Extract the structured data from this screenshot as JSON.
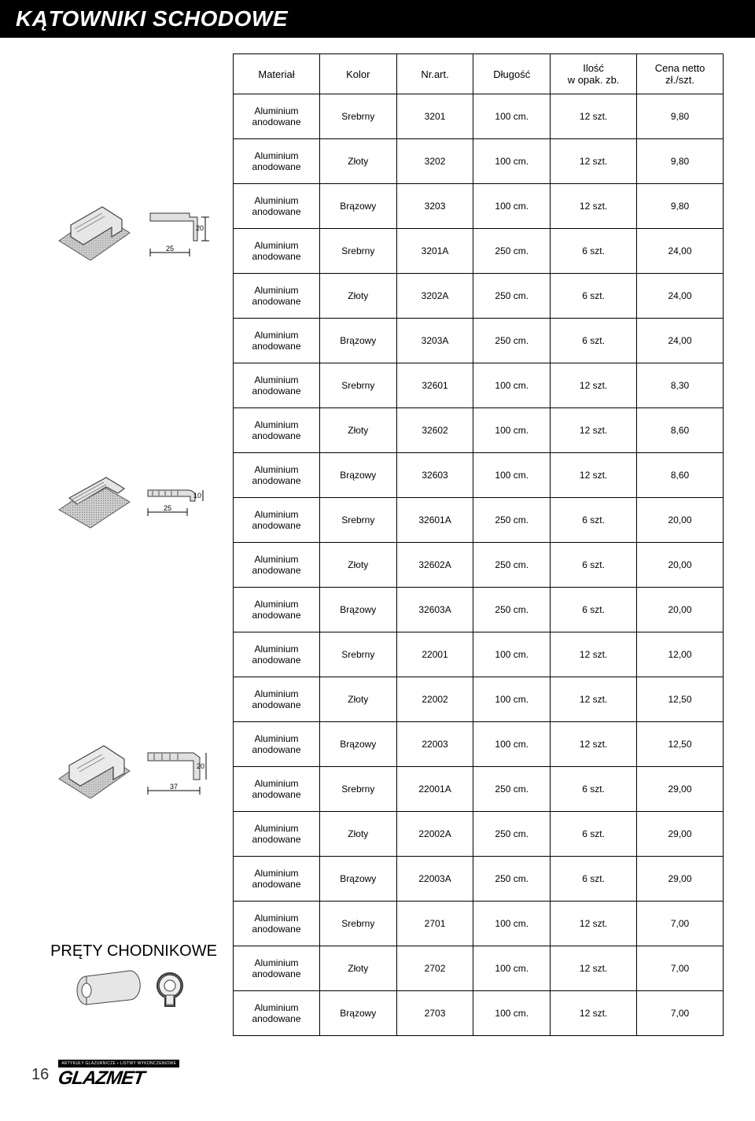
{
  "title": "KĄTOWNIKI SCHODOWE",
  "section2_title": "PRĘTY CHODNIKOWE",
  "page_number": "16",
  "logo_tag": "ARTYKUŁY GLAZURNICZE • LISTWY WYKOŃCZENIOWE",
  "logo_text": "GLAZMET",
  "headers": {
    "material": "Materiał",
    "kolor": "Kolor",
    "nrart": "Nr.art.",
    "dlugosc": "Długość",
    "ilosc": "Ilość\nw opak. zb.",
    "cena": "Cena netto\nzł./szt."
  },
  "material_label": "Aluminium\nanodowane",
  "rows": [
    {
      "k": "Srebrny",
      "a": "3201",
      "d": "100 cm.",
      "i": "12 szt.",
      "c": "9,80"
    },
    {
      "k": "Złoty",
      "a": "3202",
      "d": "100 cm.",
      "i": "12 szt.",
      "c": "9,80"
    },
    {
      "k": "Brązowy",
      "a": "3203",
      "d": "100 cm.",
      "i": "12 szt.",
      "c": "9,80"
    },
    {
      "k": "Srebrny",
      "a": "3201A",
      "d": "250 cm.",
      "i": "6 szt.",
      "c": "24,00"
    },
    {
      "k": "Złoty",
      "a": "3202A",
      "d": "250 cm.",
      "i": "6 szt.",
      "c": "24,00"
    },
    {
      "k": "Brązowy",
      "a": "3203A",
      "d": "250 cm.",
      "i": "6 szt.",
      "c": "24,00"
    },
    {
      "k": "Srebrny",
      "a": "32601",
      "d": "100 cm.",
      "i": "12 szt.",
      "c": "8,30"
    },
    {
      "k": "Złoty",
      "a": "32602",
      "d": "100 cm.",
      "i": "12 szt.",
      "c": "8,60"
    },
    {
      "k": "Brązowy",
      "a": "32603",
      "d": "100 cm.",
      "i": "12 szt.",
      "c": "8,60"
    },
    {
      "k": "Srebrny",
      "a": "32601A",
      "d": "250 cm.",
      "i": "6 szt.",
      "c": "20,00"
    },
    {
      "k": "Złoty",
      "a": "32602A",
      "d": "250 cm.",
      "i": "6 szt.",
      "c": "20,00"
    },
    {
      "k": "Brązowy",
      "a": "32603A",
      "d": "250 cm.",
      "i": "6 szt.",
      "c": "20,00"
    },
    {
      "k": "Srebrny",
      "a": "22001",
      "d": "100 cm.",
      "i": "12 szt.",
      "c": "12,00"
    },
    {
      "k": "Złoty",
      "a": "22002",
      "d": "100 cm.",
      "i": "12 szt.",
      "c": "12,50"
    },
    {
      "k": "Brązowy",
      "a": "22003",
      "d": "100 cm.",
      "i": "12 szt.",
      "c": "12,50"
    },
    {
      "k": "Srebrny",
      "a": "22001A",
      "d": "250 cm.",
      "i": "6 szt.",
      "c": "29,00"
    },
    {
      "k": "Złoty",
      "a": "22002A",
      "d": "250 cm.",
      "i": "6 szt.",
      "c": "29,00"
    },
    {
      "k": "Brązowy",
      "a": "22003A",
      "d": "250 cm.",
      "i": "6 szt.",
      "c": "29,00"
    },
    {
      "k": "Srebrny",
      "a": "2701",
      "d": "100 cm.",
      "i": "12 szt.",
      "c": "7,00"
    },
    {
      "k": "Złoty",
      "a": "2702",
      "d": "100 cm.",
      "i": "12 szt.",
      "c": "7,00"
    },
    {
      "k": "Brązowy",
      "a": "2703",
      "d": "100 cm.",
      "i": "12 szt.",
      "c": "7,00"
    }
  ],
  "images": {
    "g1_dim_h": "25",
    "g1_dim_v": "20",
    "g2_dim_h": "25",
    "g2_dim_v": "10",
    "g3_dim_h": "37",
    "g3_dim_v": "20"
  },
  "colors": {
    "text": "#000000",
    "bg": "#ffffff",
    "titlebg": "#000000",
    "titlefg": "#ffffff",
    "border": "#000000",
    "profile_fill": "#d0d0d0",
    "profile_stroke": "#555",
    "tile_fill": "#bfbfbf"
  }
}
